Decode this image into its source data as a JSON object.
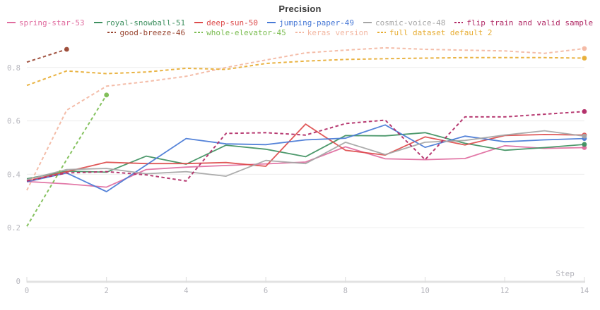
{
  "header": {
    "title": "Precision"
  },
  "axes": {
    "x_label": "Step",
    "x_ticks": [
      0,
      2,
      4,
      6,
      8,
      10,
      12,
      14
    ],
    "y_tick_labels": [
      "0",
      "0.2",
      "0.4",
      "0.6",
      "0.8"
    ],
    "y_ticks": [
      0,
      0.2,
      0.4,
      0.6,
      0.8
    ],
    "tick_color": "#b5b5bc",
    "grid_color": "#ededed",
    "axis_color": "#e2e2e2"
  },
  "chart_data": {
    "type": "line",
    "title": "Precision",
    "xlabel": "Step",
    "ylabel": "",
    "xlim": [
      0,
      14
    ],
    "ylim": [
      0,
      0.9
    ],
    "grid": "horizontal",
    "legend_position": "top",
    "x": [
      0,
      1,
      2,
      3,
      4,
      5,
      6,
      7,
      8,
      9,
      10,
      11,
      12,
      13,
      14
    ],
    "series": [
      {
        "name": "spring-star-53",
        "color": "#e06c9f",
        "style": "solid",
        "start_step": 0,
        "values": [
          0.373,
          0.364,
          0.352,
          0.418,
          0.427,
          0.433,
          0.439,
          0.446,
          0.503,
          0.458,
          0.455,
          0.459,
          0.507,
          0.497,
          0.5
        ]
      },
      {
        "name": "royal-snowball-51",
        "color": "#3e9060",
        "style": "solid",
        "start_step": 0,
        "values": [
          0.383,
          0.412,
          0.408,
          0.468,
          0.438,
          0.509,
          0.494,
          0.466,
          0.545,
          0.544,
          0.556,
          0.516,
          0.49,
          0.5,
          0.512
        ]
      },
      {
        "name": "deep-sun-50",
        "color": "#dd4b4b",
        "style": "solid",
        "start_step": 0,
        "values": [
          0.375,
          0.41,
          0.445,
          0.44,
          0.44,
          0.444,
          0.43,
          0.588,
          0.49,
          0.472,
          0.54,
          0.51,
          0.545,
          0.549,
          0.547
        ]
      },
      {
        "name": "jumping-paper-49",
        "color": "#4879d6",
        "style": "solid",
        "start_step": 0,
        "values": [
          0.372,
          0.405,
          0.335,
          0.435,
          0.534,
          0.514,
          0.511,
          0.529,
          0.535,
          0.585,
          0.501,
          0.543,
          0.522,
          0.529,
          0.534
        ]
      },
      {
        "name": "cosmic-voice-48",
        "color": "#a5a5a5",
        "style": "solid",
        "start_step": 0,
        "values": [
          0.38,
          0.418,
          0.422,
          0.402,
          0.41,
          0.393,
          0.452,
          0.44,
          0.52,
          0.474,
          0.52,
          0.527,
          0.547,
          0.563,
          0.543
        ]
      },
      {
        "name": "flip train and valid sample",
        "color": "#b12a66",
        "style": "dashed",
        "start_step": 0,
        "values": [
          0.375,
          0.405,
          0.41,
          0.398,
          0.375,
          0.553,
          0.556,
          0.547,
          0.59,
          0.603,
          0.455,
          0.615,
          0.615,
          0.625,
          0.635
        ]
      },
      {
        "name": "good-breeze-46",
        "color": "#9a4733",
        "style": "dashed",
        "start_step": 0,
        "values": [
          0.82,
          0.868
        ]
      },
      {
        "name": "whole-elevator-45",
        "color": "#7cbd52",
        "style": "dashed",
        "start_step": 0,
        "values": [
          0.205,
          0.455,
          0.697
        ]
      },
      {
        "name": "keras version",
        "color": "#f3b7a2",
        "style": "dashed",
        "start_step": 0,
        "values": [
          0.34,
          0.64,
          0.73,
          0.747,
          0.767,
          0.8,
          0.828,
          0.855,
          0.865,
          0.874,
          0.868,
          0.865,
          0.862,
          0.853,
          0.871
        ]
      },
      {
        "name": "full dataset default 2",
        "color": "#e7ad33",
        "style": "dashed",
        "start_step": 0,
        "values": [
          0.733,
          0.787,
          0.777,
          0.783,
          0.797,
          0.793,
          0.815,
          0.824,
          0.83,
          0.833,
          0.835,
          0.837,
          0.837,
          0.837,
          0.835
        ]
      }
    ],
    "legend_rows": [
      [
        0,
        1,
        2,
        3,
        4,
        5
      ],
      [
        6,
        7,
        8,
        9
      ]
    ]
  }
}
